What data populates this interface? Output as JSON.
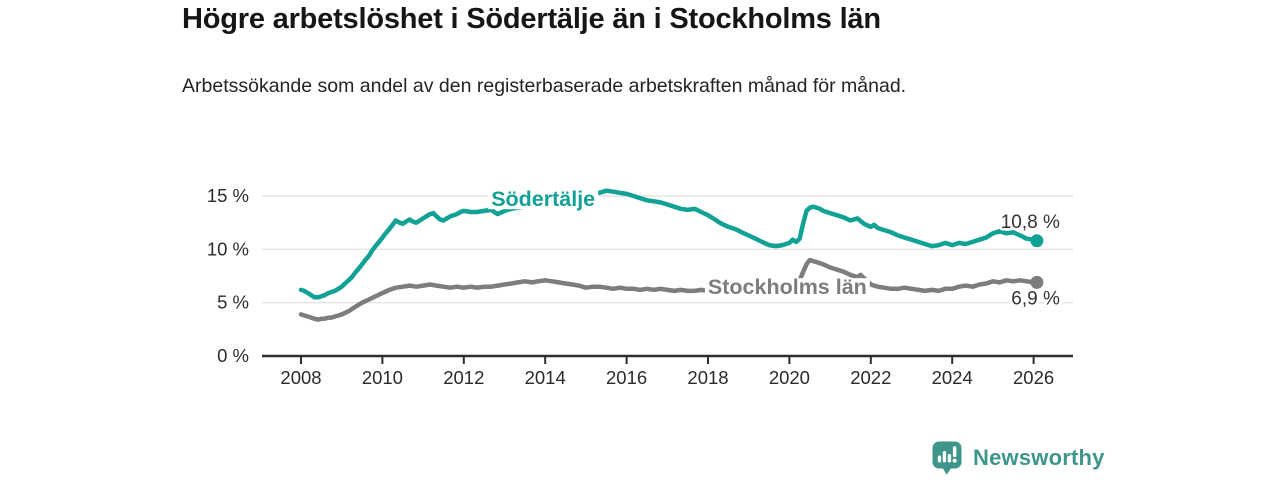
{
  "header": {
    "title": "Högre arbetslöshet i Södertälje än i Stockholms län",
    "subtitle": "Arbetssökande som andel av den registerbaserade arbetskraften månad för månad."
  },
  "footer": {
    "brand": "Newsworthy",
    "logo_icon": "bar-chart-speech-bubble-icon"
  },
  "colors": {
    "sodertalje": "#12a295",
    "stockholm": "#7d7d7d",
    "axis": "#2e2e2e",
    "axis_text": "#2b2b2b",
    "grid": "#e4e4e4",
    "value_label": "#333333",
    "title": "#161616",
    "brand": "#3e968b",
    "background": "#ffffff"
  },
  "chart_data": {
    "type": "line",
    "title": "Högre arbetslöshet i Södertälje än i Stockholms län",
    "subtitle": "Arbetssökande som andel av den registerbaserade arbetskraften månad för månad.",
    "xlabel": "",
    "ylabel": "",
    "x_unit": "decimal_year",
    "xlim": [
      2007,
      2027
    ],
    "ylim": [
      0,
      16
    ],
    "grid": "horizontal",
    "legend_position": "inline-labels",
    "y_ticks": [
      {
        "value": 0,
        "label": "0 %"
      },
      {
        "value": 5,
        "label": "5 %"
      },
      {
        "value": 10,
        "label": "10 %"
      },
      {
        "value": 15,
        "label": "15 %"
      }
    ],
    "x_ticks": [
      {
        "value": 2008,
        "label": "2008"
      },
      {
        "value": 2010,
        "label": "2010"
      },
      {
        "value": 2012,
        "label": "2012"
      },
      {
        "value": 2014,
        "label": "2014"
      },
      {
        "value": 2016,
        "label": "2016"
      },
      {
        "value": 2018,
        "label": "2018"
      },
      {
        "value": 2020,
        "label": "2020"
      },
      {
        "value": 2022,
        "label": "2022"
      },
      {
        "value": 2024,
        "label": "2024"
      },
      {
        "value": 2026,
        "label": "2026"
      }
    ],
    "series": [
      {
        "id": "stockholms-lan",
        "name": "Stockholms län",
        "color": "#7d7d7d",
        "end_label": "6,9 %",
        "label_anchor": {
          "x": 2019.95,
          "y": 6.45
        },
        "points": [
          [
            2008.0,
            3.9
          ],
          [
            2008.08,
            3.8
          ],
          [
            2008.17,
            3.7
          ],
          [
            2008.25,
            3.6
          ],
          [
            2008.33,
            3.5
          ],
          [
            2008.42,
            3.4
          ],
          [
            2008.5,
            3.5
          ],
          [
            2008.58,
            3.5
          ],
          [
            2008.67,
            3.6
          ],
          [
            2008.75,
            3.6
          ],
          [
            2008.83,
            3.7
          ],
          [
            2008.92,
            3.8
          ],
          [
            2009.0,
            3.9
          ],
          [
            2009.17,
            4.2
          ],
          [
            2009.33,
            4.6
          ],
          [
            2009.5,
            5.0
          ],
          [
            2009.67,
            5.3
          ],
          [
            2009.83,
            5.6
          ],
          [
            2010.0,
            5.9
          ],
          [
            2010.17,
            6.2
          ],
          [
            2010.33,
            6.4
          ],
          [
            2010.5,
            6.5
          ],
          [
            2010.67,
            6.6
          ],
          [
            2010.83,
            6.5
          ],
          [
            2011.0,
            6.6
          ],
          [
            2011.17,
            6.7
          ],
          [
            2011.33,
            6.6
          ],
          [
            2011.5,
            6.5
          ],
          [
            2011.67,
            6.4
          ],
          [
            2011.83,
            6.5
          ],
          [
            2012.0,
            6.4
          ],
          [
            2012.17,
            6.5
          ],
          [
            2012.33,
            6.4
          ],
          [
            2012.5,
            6.5
          ],
          [
            2012.67,
            6.5
          ],
          [
            2012.83,
            6.6
          ],
          [
            2013.0,
            6.7
          ],
          [
            2013.17,
            6.8
          ],
          [
            2013.33,
            6.9
          ],
          [
            2013.5,
            7.0
          ],
          [
            2013.67,
            6.9
          ],
          [
            2013.83,
            7.0
          ],
          [
            2014.0,
            7.1
          ],
          [
            2014.17,
            7.0
          ],
          [
            2014.33,
            6.9
          ],
          [
            2014.5,
            6.8
          ],
          [
            2014.67,
            6.7
          ],
          [
            2014.83,
            6.6
          ],
          [
            2015.0,
            6.4
          ],
          [
            2015.17,
            6.5
          ],
          [
            2015.33,
            6.5
          ],
          [
            2015.5,
            6.4
          ],
          [
            2015.67,
            6.3
          ],
          [
            2015.83,
            6.4
          ],
          [
            2016.0,
            6.3
          ],
          [
            2016.17,
            6.3
          ],
          [
            2016.33,
            6.2
          ],
          [
            2016.5,
            6.3
          ],
          [
            2016.67,
            6.2
          ],
          [
            2016.83,
            6.3
          ],
          [
            2017.0,
            6.2
          ],
          [
            2017.17,
            6.1
          ],
          [
            2017.33,
            6.2
          ],
          [
            2017.5,
            6.1
          ],
          [
            2017.67,
            6.1
          ],
          [
            2017.83,
            6.2
          ],
          [
            2018.0,
            6.1
          ],
          [
            2018.17,
            6.0
          ],
          [
            2018.33,
            6.1
          ],
          [
            2018.5,
            6.0
          ],
          [
            2018.67,
            5.9
          ],
          [
            2018.83,
            6.0
          ],
          [
            2019.0,
            5.9
          ],
          [
            2019.17,
            6.0
          ],
          [
            2019.33,
            5.9
          ],
          [
            2019.5,
            6.0
          ],
          [
            2019.67,
            5.9
          ],
          [
            2019.83,
            6.0
          ],
          [
            2020.0,
            6.1
          ],
          [
            2020.17,
            6.4
          ],
          [
            2020.33,
            7.8
          ],
          [
            2020.42,
            8.6
          ],
          [
            2020.5,
            9.0
          ],
          [
            2020.58,
            8.9
          ],
          [
            2020.67,
            8.8
          ],
          [
            2020.83,
            8.6
          ],
          [
            2021.0,
            8.3
          ],
          [
            2021.17,
            8.1
          ],
          [
            2021.33,
            7.9
          ],
          [
            2021.5,
            7.6
          ],
          [
            2021.67,
            7.4
          ],
          [
            2021.75,
            7.6
          ],
          [
            2021.83,
            7.3
          ],
          [
            2021.92,
            7.0
          ],
          [
            2022.0,
            6.7
          ],
          [
            2022.17,
            6.5
          ],
          [
            2022.33,
            6.4
          ],
          [
            2022.5,
            6.3
          ],
          [
            2022.67,
            6.3
          ],
          [
            2022.83,
            6.4
          ],
          [
            2023.0,
            6.3
          ],
          [
            2023.17,
            6.2
          ],
          [
            2023.33,
            6.1
          ],
          [
            2023.5,
            6.2
          ],
          [
            2023.67,
            6.1
          ],
          [
            2023.83,
            6.3
          ],
          [
            2024.0,
            6.3
          ],
          [
            2024.17,
            6.5
          ],
          [
            2024.33,
            6.6
          ],
          [
            2024.5,
            6.5
          ],
          [
            2024.67,
            6.7
          ],
          [
            2024.83,
            6.8
          ],
          [
            2025.0,
            7.0
          ],
          [
            2025.17,
            6.9
          ],
          [
            2025.33,
            7.1
          ],
          [
            2025.5,
            7.0
          ],
          [
            2025.67,
            7.1
          ],
          [
            2025.83,
            7.0
          ],
          [
            2026.0,
            6.9
          ],
          [
            2026.08,
            6.9
          ]
        ]
      },
      {
        "id": "sodertalje",
        "name": "Södertälje",
        "color": "#12a295",
        "end_label": "10,8 %",
        "label_anchor": {
          "x": 2013.95,
          "y": 14.7
        },
        "points": [
          [
            2008.0,
            6.2
          ],
          [
            2008.08,
            6.1
          ],
          [
            2008.17,
            5.9
          ],
          [
            2008.25,
            5.7
          ],
          [
            2008.33,
            5.5
          ],
          [
            2008.42,
            5.5
          ],
          [
            2008.5,
            5.6
          ],
          [
            2008.58,
            5.7
          ],
          [
            2008.67,
            5.9
          ],
          [
            2008.75,
            6.0
          ],
          [
            2008.83,
            6.1
          ],
          [
            2008.92,
            6.3
          ],
          [
            2009.0,
            6.5
          ],
          [
            2009.08,
            6.8
          ],
          [
            2009.17,
            7.1
          ],
          [
            2009.25,
            7.4
          ],
          [
            2009.33,
            7.8
          ],
          [
            2009.42,
            8.2
          ],
          [
            2009.5,
            8.6
          ],
          [
            2009.58,
            9.0
          ],
          [
            2009.67,
            9.4
          ],
          [
            2009.75,
            9.9
          ],
          [
            2009.83,
            10.3
          ],
          [
            2009.92,
            10.7
          ],
          [
            2010.0,
            11.1
          ],
          [
            2010.08,
            11.5
          ],
          [
            2010.17,
            11.9
          ],
          [
            2010.25,
            12.3
          ],
          [
            2010.33,
            12.7
          ],
          [
            2010.42,
            12.5
          ],
          [
            2010.5,
            12.4
          ],
          [
            2010.58,
            12.6
          ],
          [
            2010.67,
            12.8
          ],
          [
            2010.75,
            12.6
          ],
          [
            2010.83,
            12.5
          ],
          [
            2010.92,
            12.7
          ],
          [
            2011.0,
            12.9
          ],
          [
            2011.08,
            13.1
          ],
          [
            2011.17,
            13.3
          ],
          [
            2011.25,
            13.4
          ],
          [
            2011.33,
            13.1
          ],
          [
            2011.42,
            12.8
          ],
          [
            2011.5,
            12.7
          ],
          [
            2011.58,
            12.9
          ],
          [
            2011.67,
            13.1
          ],
          [
            2011.75,
            13.2
          ],
          [
            2011.83,
            13.3
          ],
          [
            2011.92,
            13.5
          ],
          [
            2012.0,
            13.6
          ],
          [
            2012.17,
            13.5
          ],
          [
            2012.33,
            13.5
          ],
          [
            2012.5,
            13.6
          ],
          [
            2012.67,
            13.7
          ],
          [
            2012.83,
            13.3
          ],
          [
            2013.0,
            13.6
          ],
          [
            2013.17,
            13.8
          ],
          [
            2013.33,
            13.9
          ],
          [
            2013.5,
            14.0
          ],
          [
            2013.67,
            14.1
          ],
          [
            2013.83,
            14.3
          ],
          [
            2014.0,
            14.5
          ],
          [
            2014.17,
            14.6
          ],
          [
            2014.33,
            14.8
          ],
          [
            2014.5,
            15.0
          ],
          [
            2014.67,
            15.1
          ],
          [
            2014.83,
            15.2
          ],
          [
            2015.0,
            15.2
          ],
          [
            2015.17,
            15.3
          ],
          [
            2015.33,
            15.3
          ],
          [
            2015.5,
            15.5
          ],
          [
            2015.67,
            15.4
          ],
          [
            2015.83,
            15.3
          ],
          [
            2016.0,
            15.2
          ],
          [
            2016.17,
            15.0
          ],
          [
            2016.33,
            14.8
          ],
          [
            2016.5,
            14.6
          ],
          [
            2016.67,
            14.5
          ],
          [
            2016.83,
            14.4
          ],
          [
            2017.0,
            14.2
          ],
          [
            2017.17,
            14.0
          ],
          [
            2017.33,
            13.8
          ],
          [
            2017.5,
            13.7
          ],
          [
            2017.67,
            13.8
          ],
          [
            2017.83,
            13.5
          ],
          [
            2018.0,
            13.2
          ],
          [
            2018.17,
            12.8
          ],
          [
            2018.33,
            12.4
          ],
          [
            2018.5,
            12.1
          ],
          [
            2018.67,
            11.9
          ],
          [
            2018.83,
            11.6
          ],
          [
            2019.0,
            11.3
          ],
          [
            2019.17,
            11.0
          ],
          [
            2019.33,
            10.7
          ],
          [
            2019.5,
            10.4
          ],
          [
            2019.67,
            10.3
          ],
          [
            2019.83,
            10.4
          ],
          [
            2020.0,
            10.6
          ],
          [
            2020.08,
            10.9
          ],
          [
            2020.17,
            10.7
          ],
          [
            2020.25,
            11.0
          ],
          [
            2020.33,
            12.3
          ],
          [
            2020.42,
            13.6
          ],
          [
            2020.5,
            13.9
          ],
          [
            2020.58,
            14.0
          ],
          [
            2020.67,
            13.9
          ],
          [
            2020.75,
            13.8
          ],
          [
            2020.83,
            13.6
          ],
          [
            2020.92,
            13.5
          ],
          [
            2021.0,
            13.4
          ],
          [
            2021.17,
            13.2
          ],
          [
            2021.33,
            13.0
          ],
          [
            2021.5,
            12.7
          ],
          [
            2021.67,
            12.9
          ],
          [
            2021.83,
            12.4
          ],
          [
            2022.0,
            12.1
          ],
          [
            2022.08,
            12.3
          ],
          [
            2022.17,
            12.0
          ],
          [
            2022.33,
            11.8
          ],
          [
            2022.5,
            11.6
          ],
          [
            2022.67,
            11.3
          ],
          [
            2022.83,
            11.1
          ],
          [
            2023.0,
            10.9
          ],
          [
            2023.17,
            10.7
          ],
          [
            2023.33,
            10.5
          ],
          [
            2023.5,
            10.3
          ],
          [
            2023.67,
            10.4
          ],
          [
            2023.83,
            10.6
          ],
          [
            2024.0,
            10.4
          ],
          [
            2024.17,
            10.6
          ],
          [
            2024.33,
            10.5
          ],
          [
            2024.5,
            10.7
          ],
          [
            2024.67,
            10.9
          ],
          [
            2024.83,
            11.1
          ],
          [
            2025.0,
            11.5
          ],
          [
            2025.17,
            11.7
          ],
          [
            2025.33,
            11.5
          ],
          [
            2025.5,
            11.6
          ],
          [
            2025.67,
            11.3
          ],
          [
            2025.83,
            11.0
          ],
          [
            2026.0,
            10.9
          ],
          [
            2026.08,
            10.8
          ]
        ]
      }
    ]
  }
}
